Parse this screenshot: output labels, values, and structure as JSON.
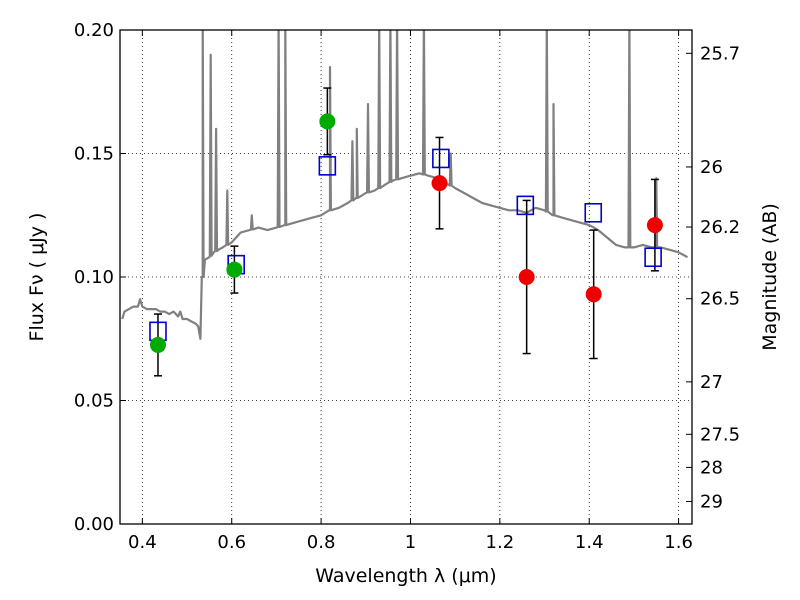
{
  "chart_data": {
    "type": "scatter",
    "title": "",
    "xlabel": "Wavelength  λ (μm)",
    "ylabel_left": "Flux  Fν  ( μJy )",
    "ylabel_right": "Magnitude (AB)",
    "xlim": [
      0.35,
      1.63
    ],
    "ylim": [
      0.0,
      0.2
    ],
    "grid": true,
    "grid_style": "dotted",
    "x_ticks": [
      {
        "value": 0.4,
        "label": "0.4"
      },
      {
        "value": 0.6,
        "label": "0.6"
      },
      {
        "value": 0.8,
        "label": "0.8"
      },
      {
        "value": 1.0,
        "label": "1"
      },
      {
        "value": 1.2,
        "label": "1.2"
      },
      {
        "value": 1.4,
        "label": "1.4"
      },
      {
        "value": 1.6,
        "label": "1.6"
      }
    ],
    "y_ticks": [
      {
        "value": 0.0,
        "label": "0.00"
      },
      {
        "value": 0.05,
        "label": "0.05"
      },
      {
        "value": 0.1,
        "label": "0.10"
      },
      {
        "value": 0.15,
        "label": "0.15"
      },
      {
        "value": 0.2,
        "label": "0.20"
      }
    ],
    "right_ticks": [
      {
        "value": 25.7,
        "label": "25.7"
      },
      {
        "value": 26,
        "label": "26"
      },
      {
        "value": 26.2,
        "label": "26.2"
      },
      {
        "value": 26.5,
        "label": "26.5"
      },
      {
        "value": 27,
        "label": "27"
      },
      {
        "value": 27.5,
        "label": "27.5"
      },
      {
        "value": 28,
        "label": "28"
      },
      {
        "value": 29,
        "label": "29"
      }
    ],
    "series": [
      {
        "kind": "model_spectrum",
        "color": "#808080",
        "x": [
          0.355,
          0.36,
          0.37,
          0.38,
          0.39,
          0.395,
          0.4,
          0.41,
          0.42,
          0.43,
          0.44,
          0.45,
          0.46,
          0.47,
          0.48,
          0.485,
          0.49,
          0.5,
          0.51,
          0.52,
          0.525,
          0.53,
          0.535,
          0.54,
          0.55,
          0.56,
          0.57,
          0.58,
          0.6,
          0.62,
          0.64,
          0.66,
          0.68,
          0.7,
          0.72,
          0.74,
          0.76,
          0.78,
          0.8,
          0.82,
          0.84,
          0.86,
          0.88,
          0.9,
          0.92,
          0.94,
          0.96,
          0.98,
          1.0,
          1.02,
          1.04,
          1.06,
          1.08,
          1.1,
          1.12,
          1.14,
          1.16,
          1.18,
          1.2,
          1.22,
          1.24,
          1.26,
          1.28,
          1.3,
          1.32,
          1.34,
          1.36,
          1.38,
          1.4,
          1.42,
          1.44,
          1.46,
          1.48,
          1.5,
          1.52,
          1.54,
          1.56,
          1.58,
          1.6,
          1.62
        ],
        "y": [
          0.083,
          0.086,
          0.087,
          0.088,
          0.088,
          0.091,
          0.088,
          0.087,
          0.087,
          0.087,
          0.086,
          0.086,
          0.085,
          0.086,
          0.084,
          0.086,
          0.083,
          0.083,
          0.082,
          0.081,
          0.08,
          0.075,
          0.1,
          0.107,
          0.108,
          0.11,
          0.111,
          0.112,
          0.114,
          0.118,
          0.119,
          0.12,
          0.119,
          0.12,
          0.121,
          0.122,
          0.123,
          0.124,
          0.125,
          0.127,
          0.128,
          0.13,
          0.132,
          0.134,
          0.135,
          0.137,
          0.139,
          0.14,
          0.141,
          0.142,
          0.141,
          0.14,
          0.138,
          0.136,
          0.134,
          0.132,
          0.13,
          0.129,
          0.128,
          0.127,
          0.127,
          0.126,
          0.128,
          0.127,
          0.125,
          0.124,
          0.123,
          0.122,
          0.121,
          0.119,
          0.116,
          0.113,
          0.112,
          0.112,
          0.113,
          0.112,
          0.112,
          0.111,
          0.11,
          0.108
        ],
        "emission_lines": [
          {
            "x": 0.535,
            "peak": 0.205
          },
          {
            "x": 0.553,
            "peak": 0.19
          },
          {
            "x": 0.565,
            "peak": 0.16
          },
          {
            "x": 0.59,
            "peak": 0.135
          },
          {
            "x": 0.645,
            "peak": 0.125
          },
          {
            "x": 0.705,
            "peak": 0.205
          },
          {
            "x": 0.72,
            "peak": 0.205
          },
          {
            "x": 0.82,
            "peak": 0.185
          },
          {
            "x": 0.87,
            "peak": 0.155
          },
          {
            "x": 0.88,
            "peak": 0.16
          },
          {
            "x": 0.905,
            "peak": 0.17
          },
          {
            "x": 0.93,
            "peak": 0.205
          },
          {
            "x": 0.955,
            "peak": 0.205
          },
          {
            "x": 0.97,
            "peak": 0.205
          },
          {
            "x": 1.03,
            "peak": 0.205
          },
          {
            "x": 1.09,
            "peak": 0.15
          },
          {
            "x": 1.305,
            "peak": 0.205
          },
          {
            "x": 1.32,
            "peak": 0.17
          },
          {
            "x": 1.49,
            "peak": 0.205
          },
          {
            "x": 1.55,
            "peak": 0.14
          }
        ]
      },
      {
        "kind": "model_flux",
        "color": "#0000cc",
        "marker": "open-square",
        "points": [
          {
            "x": 0.435,
            "y": 0.078
          },
          {
            "x": 0.61,
            "y": 0.105
          },
          {
            "x": 0.814,
            "y": 0.145
          },
          {
            "x": 1.068,
            "y": 0.148
          },
          {
            "x": 1.257,
            "y": 0.129
          },
          {
            "x": 1.409,
            "y": 0.126
          },
          {
            "x": 1.543,
            "y": 0.108
          }
        ]
      },
      {
        "kind": "observed",
        "color": "#00aa00",
        "marker": "filled-circle",
        "points": [
          {
            "x": 0.435,
            "y": 0.0725,
            "err": 0.0125
          },
          {
            "x": 0.606,
            "y": 0.103,
            "err": 0.0095
          },
          {
            "x": 0.814,
            "y": 0.163,
            "err": 0.0135
          }
        ]
      },
      {
        "kind": "observed",
        "color": "#ee0000",
        "marker": "filled-circle",
        "points": [
          {
            "x": 1.065,
            "y": 0.138,
            "err": 0.0185
          },
          {
            "x": 1.26,
            "y": 0.1,
            "err": 0.031
          },
          {
            "x": 1.41,
            "y": 0.093,
            "err": 0.026
          },
          {
            "x": 1.547,
            "y": 0.121,
            "err": 0.0185
          }
        ]
      }
    ]
  }
}
